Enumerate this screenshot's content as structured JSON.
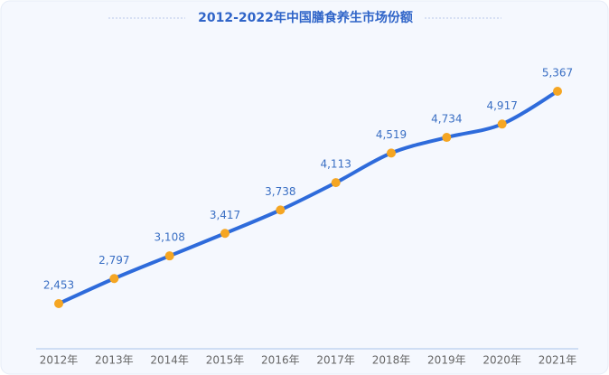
{
  "chart_data": {
    "type": "line",
    "title": "2012-2022年中国膳食养生市场份额",
    "categories": [
      "2012年",
      "2013年",
      "2014年",
      "2015年",
      "2016年",
      "2017年",
      "2018年",
      "2019年",
      "2020年",
      "2021年"
    ],
    "values": [
      2453,
      2797,
      3108,
      3417,
      3738,
      4113,
      4519,
      4734,
      4917,
      5367
    ],
    "value_labels": [
      "2,453",
      "2,797",
      "3,108",
      "3,417",
      "3,738",
      "4,113",
      "4,519",
      "4,734",
      "4,917",
      "5,367"
    ],
    "color": "#2e6bdb",
    "marker_color": "#f5a623"
  }
}
